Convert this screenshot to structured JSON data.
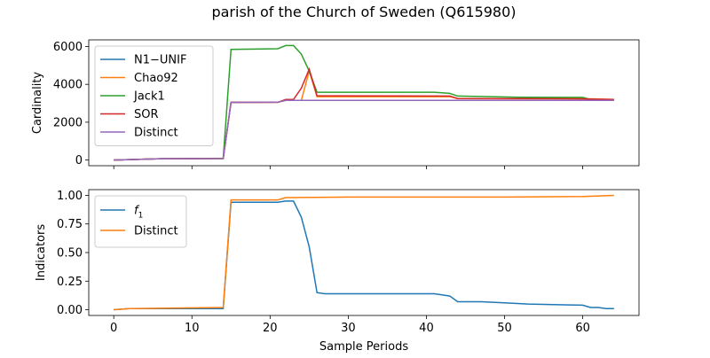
{
  "figure": {
    "title": "parish of the Church of Sweden (Q615980)",
    "xlabel": "Sample Periods"
  },
  "chart_data": [
    {
      "type": "line",
      "panel": "top",
      "ylabel": "Cardinality",
      "xlim": [
        -3.2,
        67.2
      ],
      "ylim": [
        -300,
        6350
      ],
      "xticks": [
        0,
        10,
        20,
        30,
        40,
        50,
        60
      ],
      "yticks": [
        0,
        2000,
        4000,
        6000
      ],
      "ytick_labels": [
        "0",
        "2000",
        "4000",
        "6000"
      ],
      "grid": false,
      "legend_position": "upper left",
      "series": [
        {
          "name": "N1−UNIF",
          "color": "#1f77b4",
          "x": [
            0,
            6,
            14,
            15,
            21,
            22,
            64
          ],
          "y": [
            0,
            70,
            80,
            3050,
            3060,
            3150,
            3150
          ]
        },
        {
          "name": "Chao92",
          "color": "#ff7f0e",
          "x": [
            0,
            6,
            14,
            15,
            21,
            22,
            23,
            24,
            25,
            26,
            43,
            44,
            60,
            64
          ],
          "y": [
            0,
            70,
            80,
            3050,
            3060,
            3150,
            3150,
            3150,
            4700,
            3350,
            3350,
            3250,
            3250,
            3200
          ]
        },
        {
          "name": "Jack1",
          "color": "#2ca02c",
          "x": [
            0,
            6,
            14,
            15,
            21,
            22,
            23,
            24,
            25,
            26,
            41,
            42,
            43,
            44,
            52,
            60,
            61,
            64
          ],
          "y": [
            0,
            70,
            80,
            5850,
            5880,
            6050,
            6050,
            5600,
            4700,
            3580,
            3580,
            3550,
            3520,
            3380,
            3320,
            3310,
            3200,
            3200
          ]
        },
        {
          "name": "SOR",
          "color": "#d62728",
          "x": [
            0,
            6,
            14,
            15,
            21,
            22,
            23,
            24,
            25,
            26,
            43,
            44,
            60,
            64
          ],
          "y": [
            0,
            70,
            80,
            3050,
            3050,
            3200,
            3200,
            3800,
            4800,
            3400,
            3380,
            3250,
            3230,
            3200
          ]
        },
        {
          "name": "Distinct",
          "color": "#9467bd",
          "x": [
            0,
            6,
            14,
            15,
            21,
            22,
            64
          ],
          "y": [
            0,
            70,
            80,
            3050,
            3060,
            3150,
            3150
          ]
        }
      ]
    },
    {
      "type": "line",
      "panel": "bottom",
      "ylabel": "Indicators",
      "xlabel": "Sample Periods",
      "xlim": [
        -3.2,
        67.2
      ],
      "ylim": [
        -0.05,
        1.05
      ],
      "xticks": [
        0,
        10,
        20,
        30,
        40,
        50,
        60
      ],
      "xtick_labels": [
        "0",
        "10",
        "20",
        "30",
        "40",
        "50",
        "60"
      ],
      "yticks": [
        0,
        0.25,
        0.5,
        0.75,
        1.0
      ],
      "ytick_labels": [
        "0.00",
        "0.25",
        "0.50",
        "0.75",
        "1.00"
      ],
      "grid": false,
      "legend_position": "upper left",
      "series": [
        {
          "name": "f1",
          "color": "#1f77b4",
          "x": [
            0,
            2,
            14,
            15,
            21,
            22,
            23,
            24,
            25,
            26,
            27,
            41,
            42,
            43,
            44,
            47,
            50,
            53,
            60,
            61,
            62,
            63,
            64
          ],
          "y": [
            0.0,
            0.01,
            0.01,
            0.94,
            0.94,
            0.95,
            0.95,
            0.81,
            0.55,
            0.15,
            0.14,
            0.14,
            0.13,
            0.12,
            0.07,
            0.07,
            0.06,
            0.05,
            0.04,
            0.02,
            0.02,
            0.01,
            0.01
          ]
        },
        {
          "name": "Distinct",
          "color": "#ff7f0e",
          "x": [
            0,
            2,
            14,
            15,
            21,
            22,
            30,
            50,
            60,
            64
          ],
          "y": [
            0.0,
            0.01,
            0.02,
            0.96,
            0.96,
            0.98,
            0.985,
            0.985,
            0.99,
            1.0
          ]
        }
      ]
    }
  ]
}
